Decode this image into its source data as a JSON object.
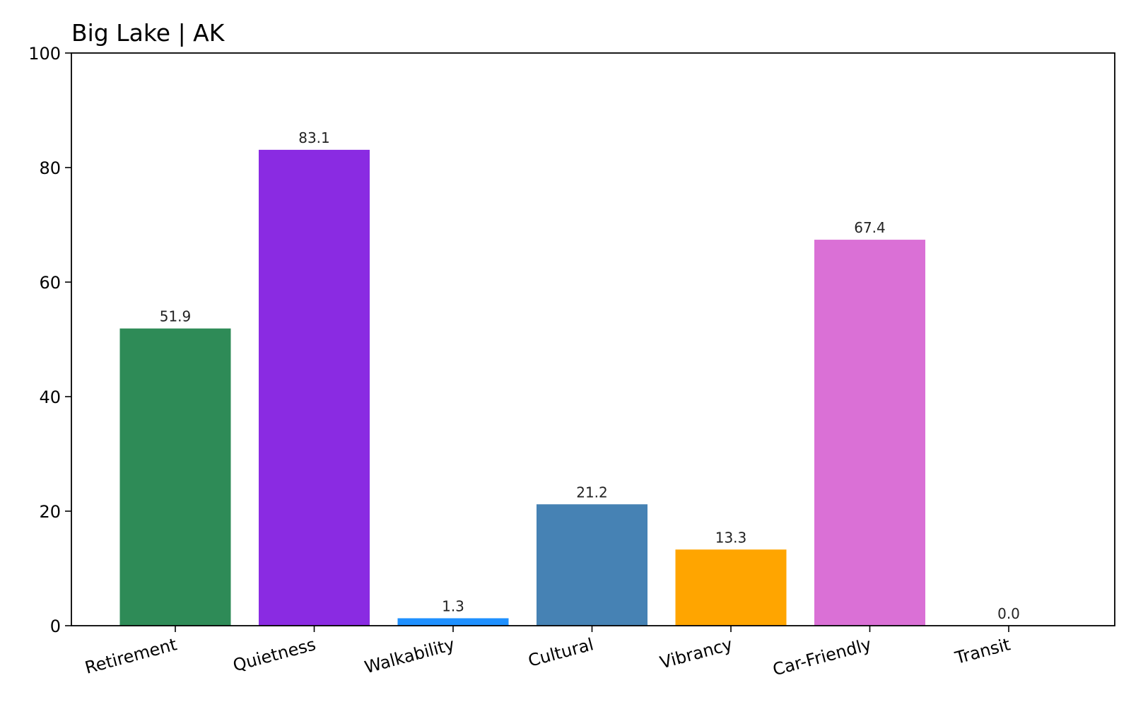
{
  "chart_data": {
    "type": "bar",
    "title": "Big Lake | AK",
    "xlabel": "",
    "ylabel": "",
    "ylim": [
      0,
      100
    ],
    "yticks": [
      0,
      20,
      40,
      60,
      80,
      100
    ],
    "grid": false,
    "categories": [
      "Retirement",
      "Quietness",
      "Walkability",
      "Cultural",
      "Vibrancy",
      "Car-Friendly",
      "Transit"
    ],
    "values": [
      51.9,
      83.1,
      1.3,
      21.2,
      13.3,
      67.4,
      0.0
    ],
    "value_labels": [
      "51.9",
      "83.1",
      "1.3",
      "21.2",
      "13.3",
      "67.4",
      "0.0"
    ],
    "colors": [
      "#2e8b57",
      "#8a2be2",
      "#1e90ff",
      "#4682b4",
      "#ffa500",
      "#da70d6",
      "#cccccc"
    ]
  }
}
